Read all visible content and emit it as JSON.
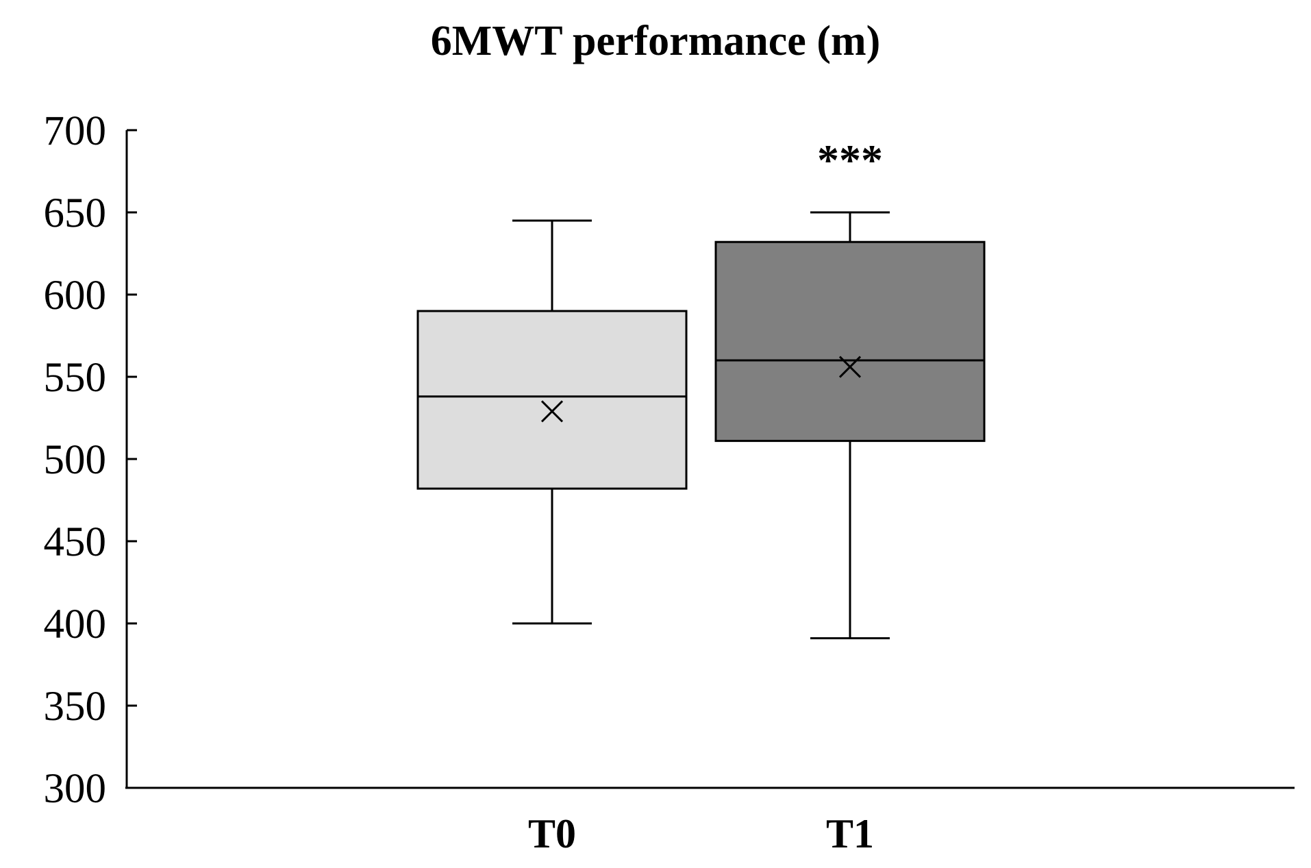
{
  "chart_data": {
    "type": "box",
    "title": "6MWT performance (m)",
    "xlabel": "",
    "ylabel": "",
    "ylim": [
      300,
      700
    ],
    "yticks": [
      "700",
      "650",
      "600",
      "550",
      "500",
      "450",
      "400",
      "350",
      "300"
    ],
    "grid": false,
    "legend": "none",
    "categories": [
      "T0",
      "T1"
    ],
    "boxes": [
      {
        "category": "T0",
        "min": 400,
        "q1": 482,
        "median": 538,
        "mean": 529,
        "q3": 590,
        "max": 645,
        "color": "#dddddd",
        "annotation": ""
      },
      {
        "category": "T1",
        "min": 391,
        "q1": 511,
        "median": 560,
        "mean": 556,
        "q3": 632,
        "max": 650,
        "color": "#808080",
        "annotation": "***"
      }
    ]
  }
}
